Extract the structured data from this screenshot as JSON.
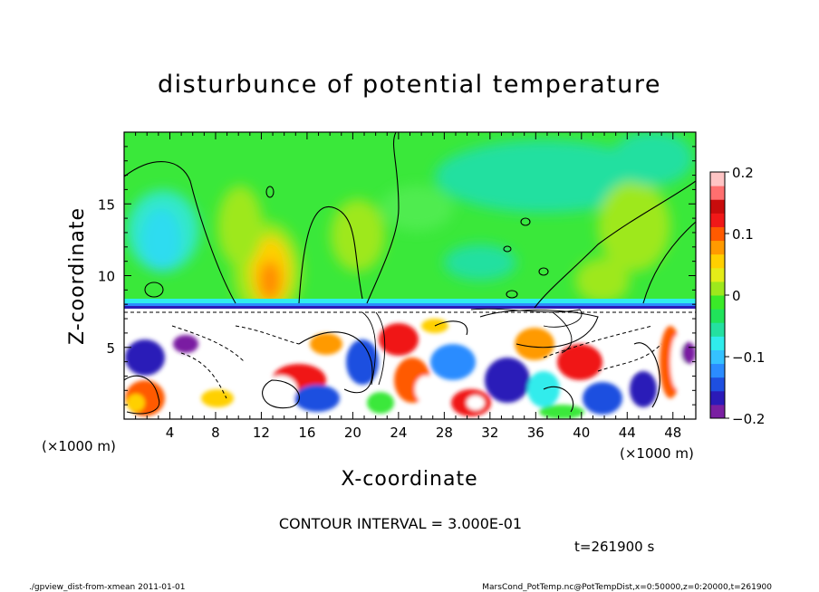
{
  "chart_data": {
    "type": "heatmap",
    "title": "disturbunce of potential temperature",
    "xlabel": "X-coordinate",
    "ylabel": "Z-coordinate",
    "x_unit_left": "(×1000 m)",
    "x_unit_right": "(×1000 m)",
    "xlim": [
      0,
      50
    ],
    "ylim": [
      0,
      20
    ],
    "xticks": [
      "4",
      "8",
      "12",
      "16",
      "20",
      "24",
      "28",
      "32",
      "36",
      "40",
      "44",
      "48"
    ],
    "xtick_values": [
      4,
      8,
      12,
      16,
      20,
      24,
      28,
      32,
      36,
      40,
      44,
      48
    ],
    "yticks": [
      "5",
      "10",
      "15"
    ],
    "ytick_values": [
      5,
      10,
      15
    ],
    "colorbar": {
      "range": [
        -0.2,
        0.2
      ],
      "tick_labels": [
        "0.2",
        "0.1",
        "0",
        "−0.1",
        "−0.2"
      ],
      "tick_values": [
        0.2,
        0.1,
        0,
        -0.1,
        -0.2
      ],
      "colors": [
        "#7a1fa2",
        "#2b1ab8",
        "#1e4fe0",
        "#2b8cff",
        "#35c2ff",
        "#30ecec",
        "#24e0a0",
        "#20e35a",
        "#3aea28",
        "#9ee81c",
        "#e4ec18",
        "#ffd000",
        "#ff9a00",
        "#ff5a00",
        "#f01818",
        "#c80c0c",
        "#ff6f6f",
        "#ffc4c4"
      ]
    },
    "contour_interval": "CONTOUR INTERVAL = 3.000E-01",
    "time_label": "t=261900 s"
  },
  "footer": {
    "left": "./gpview_dist-from-xmean  2011-01-01",
    "right": "MarsCond_PotTemp.nc@PotTempDist,x=0:50000,z=0:20000,t=261900"
  }
}
